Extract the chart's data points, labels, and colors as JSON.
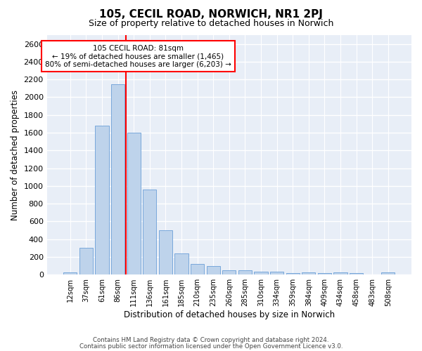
{
  "title1": "105, CECIL ROAD, NORWICH, NR1 2PJ",
  "title2": "Size of property relative to detached houses in Norwich",
  "xlabel": "Distribution of detached houses by size in Norwich",
  "ylabel": "Number of detached properties",
  "bar_labels": [
    "12sqm",
    "37sqm",
    "61sqm",
    "86sqm",
    "111sqm",
    "136sqm",
    "161sqm",
    "185sqm",
    "210sqm",
    "235sqm",
    "260sqm",
    "285sqm",
    "310sqm",
    "334sqm",
    "359sqm",
    "384sqm",
    "409sqm",
    "434sqm",
    "458sqm",
    "483sqm",
    "508sqm"
  ],
  "bar_values": [
    25,
    300,
    1680,
    2150,
    1600,
    960,
    500,
    240,
    120,
    100,
    50,
    50,
    35,
    35,
    20,
    25,
    20,
    25,
    20,
    5,
    25
  ],
  "bar_color": "#bed3eb",
  "bar_edge_color": "#6a9fd8",
  "vline_x": 3.5,
  "vline_color": "red",
  "annotation_text": "105 CECIL ROAD: 81sqm\n← 19% of detached houses are smaller (1,465)\n80% of semi-detached houses are larger (6,203) →",
  "annotation_box_color": "white",
  "annotation_box_edge": "red",
  "footer1": "Contains HM Land Registry data © Crown copyright and database right 2024.",
  "footer2": "Contains public sector information licensed under the Open Government Licence v3.0.",
  "ylim": [
    0,
    2700
  ],
  "yticks": [
    0,
    200,
    400,
    600,
    800,
    1000,
    1200,
    1400,
    1600,
    1800,
    2000,
    2200,
    2400,
    2600
  ],
  "plot_bg_color": "#e8eef7",
  "fig_bg_color": "#ffffff",
  "grid_color": "#ffffff"
}
